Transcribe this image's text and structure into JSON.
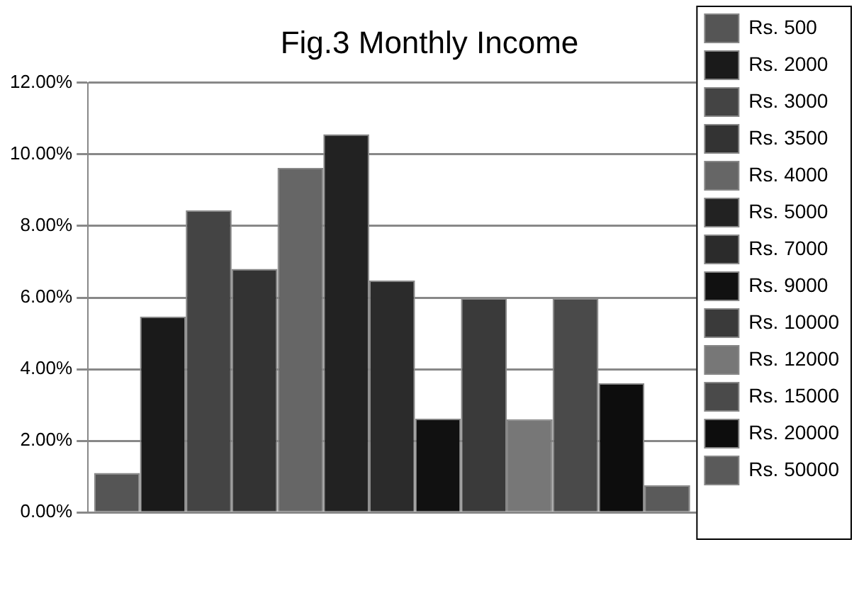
{
  "chart_data": {
    "type": "bar",
    "title": "Fig.3 Monthly Income",
    "categories": [
      null
    ],
    "series": [
      {
        "name": "Rs. 500",
        "color": "#555555",
        "values": [
          1.1
        ]
      },
      {
        "name": "Rs. 2000",
        "color": "#1a1a1a",
        "values": [
          5.47
        ]
      },
      {
        "name": "Rs. 3000",
        "color": "#444444",
        "values": [
          8.44
        ]
      },
      {
        "name": "Rs. 3500",
        "color": "#333333",
        "values": [
          6.8
        ]
      },
      {
        "name": "Rs. 4000",
        "color": "#666666",
        "values": [
          9.62
        ]
      },
      {
        "name": "Rs. 5000",
        "color": "#222222",
        "values": [
          10.56
        ]
      },
      {
        "name": "Rs. 7000",
        "color": "#2b2b2b",
        "values": [
          6.48
        ]
      },
      {
        "name": "Rs. 9000",
        "color": "#111111",
        "values": [
          2.62
        ]
      },
      {
        "name": "Rs. 10000",
        "color": "#3a3a3a",
        "values": [
          5.98
        ]
      },
      {
        "name": "Rs. 12000",
        "color": "#777777",
        "values": [
          2.6
        ]
      },
      {
        "name": "Rs. 15000",
        "color": "#4a4a4a",
        "values": [
          5.98
        ]
      },
      {
        "name": "Rs. 20000",
        "color": "#0d0d0d",
        "values": [
          3.61
        ]
      },
      {
        "name": "Rs. 50000",
        "color": "#5a5a5a",
        "values": [
          0.76
        ]
      }
    ],
    "ylim": [
      0,
      12
    ],
    "yticks": [
      {
        "value": 0,
        "label": "0.00%"
      },
      {
        "value": 2,
        "label": "2.00%"
      },
      {
        "value": 4,
        "label": "4.00%"
      },
      {
        "value": 6,
        "label": "6.00%"
      },
      {
        "value": 8,
        "label": "8.00%"
      },
      {
        "value": 10,
        "label": "10.00%"
      },
      {
        "value": 12,
        "label": "12.00%"
      }
    ],
    "grid": "y",
    "legend": "right"
  }
}
